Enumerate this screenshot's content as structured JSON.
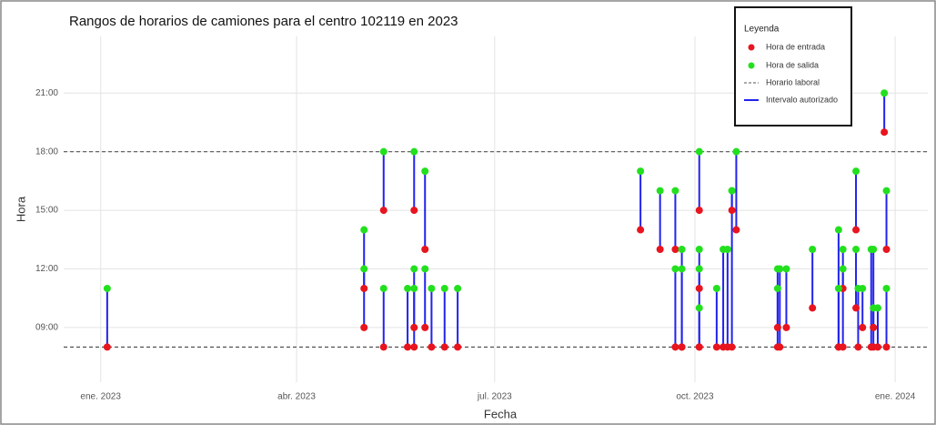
{
  "chart_data": {
    "type": "dumbbell",
    "title": "Rangos de horarios de camiones para el centro 102119 en 2023",
    "x_label": "Fecha",
    "y_label": "Hora",
    "legend_title": "Leyenda",
    "legend_position": "top-right",
    "grid": true,
    "x": [
      3,
      121,
      121,
      130,
      130,
      141,
      144,
      144,
      144,
      149,
      149,
      152,
      158,
      164,
      248,
      257,
      264,
      264,
      267,
      267,
      275,
      275,
      275,
      275,
      283,
      286,
      288,
      290,
      290,
      292,
      311,
      311,
      312,
      315,
      327,
      339,
      339,
      341,
      341,
      347,
      347,
      348,
      350,
      354,
      355,
      355,
      357,
      360,
      361,
      361
    ],
    "series": [
      {
        "name": "Hora de entrada",
        "color": "#e8141e",
        "values": [
          8,
          9,
          11,
          15,
          8,
          8,
          15,
          9,
          8,
          13,
          9,
          8,
          8,
          8,
          14,
          13,
          8,
          13,
          8,
          8,
          15,
          11,
          8,
          8,
          8,
          8,
          8,
          15,
          8,
          14,
          8,
          9,
          8,
          9,
          10,
          8,
          8,
          11,
          8,
          14,
          10,
          8,
          9,
          8,
          9,
          8,
          8,
          19,
          13,
          8
        ]
      },
      {
        "name": "Hora de salida",
        "color": "#22e01e",
        "values": [
          11,
          14,
          12,
          18,
          11,
          11,
          18,
          12,
          11,
          17,
          12,
          11,
          11,
          11,
          17,
          16,
          12,
          16,
          13,
          12,
          18,
          13,
          10,
          12,
          11,
          13,
          13,
          16,
          16,
          18,
          12,
          11,
          12,
          12,
          13,
          14,
          11,
          13,
          12,
          17,
          13,
          11,
          11,
          13,
          10,
          13,
          10,
          21,
          16,
          11
        ]
      }
    ],
    "interval": {
      "name": "Intervalo autorizado",
      "color": "#2222ee"
    },
    "reference_lines": {
      "name": "Horario laboral",
      "values": [
        8,
        18
      ]
    },
    "xlim": [
      -17,
      380
    ],
    "xticks": [
      {
        "value": 0,
        "label": "ene. 2023"
      },
      {
        "value": 90,
        "label": "abr. 2023"
      },
      {
        "value": 181,
        "label": "jul. 2023"
      },
      {
        "value": 273,
        "label": "oct. 2023"
      },
      {
        "value": 365,
        "label": "ene. 2024"
      }
    ],
    "ylim": [
      6.2,
      23.9
    ],
    "yticks": [
      {
        "value": 9,
        "label": "09:00"
      },
      {
        "value": 12,
        "label": "12:00"
      },
      {
        "value": 15,
        "label": "15:00"
      },
      {
        "value": 18,
        "label": "18:00"
      },
      {
        "value": 21,
        "label": "21:00"
      }
    ]
  }
}
